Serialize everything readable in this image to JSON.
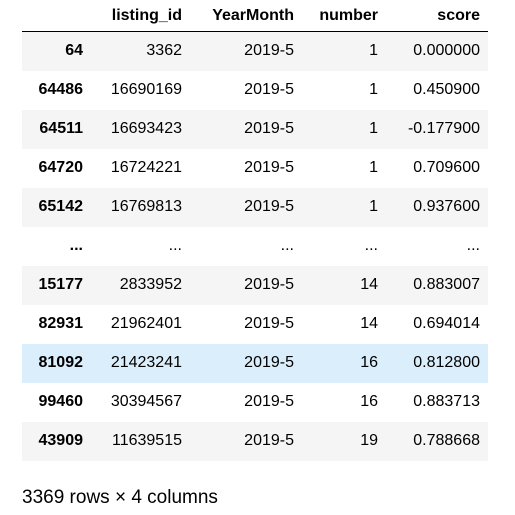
{
  "table": {
    "columns": [
      "",
      "listing_id",
      "YearMonth",
      "number",
      "score"
    ],
    "rows": [
      {
        "index": "64",
        "listing_id": "3362",
        "YearMonth": "2019-5",
        "number": "1",
        "score": "0.000000"
      },
      {
        "index": "64486",
        "listing_id": "16690169",
        "YearMonth": "2019-5",
        "number": "1",
        "score": "0.450900"
      },
      {
        "index": "64511",
        "listing_id": "16693423",
        "YearMonth": "2019-5",
        "number": "1",
        "score": "-0.177900"
      },
      {
        "index": "64720",
        "listing_id": "16724221",
        "YearMonth": "2019-5",
        "number": "1",
        "score": "0.709600"
      },
      {
        "index": "65142",
        "listing_id": "16769813",
        "YearMonth": "2019-5",
        "number": "1",
        "score": "0.937600"
      },
      {
        "index": "...",
        "listing_id": "...",
        "YearMonth": "...",
        "number": "...",
        "score": "..."
      },
      {
        "index": "15177",
        "listing_id": "2833952",
        "YearMonth": "2019-5",
        "number": "14",
        "score": "0.883007"
      },
      {
        "index": "82931",
        "listing_id": "21962401",
        "YearMonth": "2019-5",
        "number": "14",
        "score": "0.694014"
      },
      {
        "index": "81092",
        "listing_id": "21423241",
        "YearMonth": "2019-5",
        "number": "16",
        "score": "0.812800"
      },
      {
        "index": "99460",
        "listing_id": "30394567",
        "YearMonth": "2019-5",
        "number": "16",
        "score": "0.883713"
      },
      {
        "index": "43909",
        "listing_id": "11639515",
        "YearMonth": "2019-5",
        "number": "19",
        "score": "0.788668"
      }
    ],
    "hovered_row": 8,
    "colors": {
      "odd_row": "#f5f5f5",
      "hover_row": "#dbeefb",
      "header_rule": "#000000"
    }
  },
  "footer": {
    "shape_text": "3369 rows × 4 columns"
  }
}
